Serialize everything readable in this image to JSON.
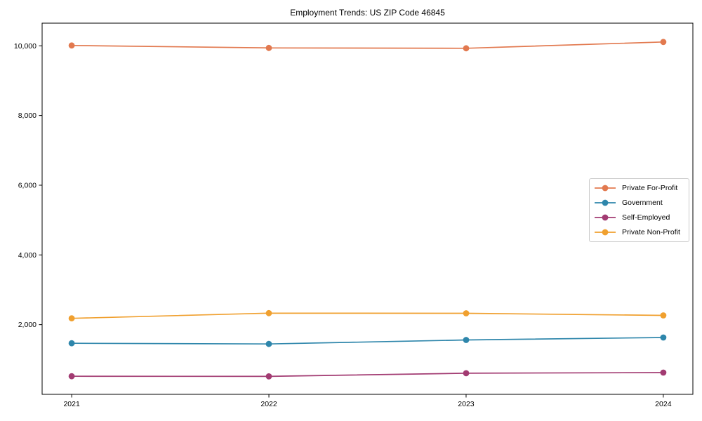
{
  "chart_data": {
    "type": "line",
    "title": "Employment Trends: US ZIP Code 46845",
    "xlabel": "",
    "ylabel": "",
    "x": [
      2021,
      2022,
      2023,
      2024
    ],
    "series": [
      {
        "name": "Private For-Profit",
        "color": "#e2794f",
        "values": [
          10010,
          9940,
          9930,
          10110
        ]
      },
      {
        "name": "Government",
        "color": "#2e86ab",
        "values": [
          1465,
          1445,
          1560,
          1630
        ]
      },
      {
        "name": "Self-Employed",
        "color": "#a23b72",
        "values": [
          520,
          515,
          605,
          625
        ]
      },
      {
        "name": "Private Non-Profit",
        "color": "#f0a02f",
        "values": [
          2180,
          2330,
          2325,
          2265
        ]
      }
    ],
    "xticks": [
      {
        "value": 2021,
        "label": "2021"
      },
      {
        "value": 2022,
        "label": "2022"
      },
      {
        "value": 2023,
        "label": "2023"
      },
      {
        "value": 2024,
        "label": "2024"
      }
    ],
    "yticks": [
      {
        "value": 2000,
        "label": "2,000"
      },
      {
        "value": 4000,
        "label": "4,000"
      },
      {
        "value": 6000,
        "label": "6,000"
      },
      {
        "value": 8000,
        "label": "8,000"
      },
      {
        "value": 10000,
        "label": "10,000"
      }
    ],
    "xlim": [
      2020.85,
      2024.15
    ],
    "ylim": [
      0,
      10650
    ],
    "grid": false,
    "marker": "circle",
    "legend_position": "center-right",
    "axis_color": "#000000",
    "legend_border_color": "#cccccc"
  }
}
